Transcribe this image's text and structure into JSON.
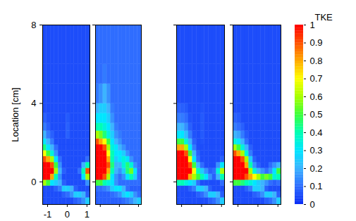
{
  "chart_data": {
    "type": "heatmap",
    "y_label": "Location [cm]",
    "xlim": [
      -1.25,
      1.15
    ],
    "ylim": [
      -1.15,
      8
    ],
    "xticks": [
      -1,
      0,
      1
    ],
    "yticks": [
      0,
      4,
      8
    ],
    "x_bins": [
      -1.25,
      -1.05,
      -0.85,
      -0.65,
      -0.45,
      -0.25,
      -0.05,
      0.15,
      0.35,
      0.55,
      0.75,
      0.95,
      1.15
    ],
    "y_bins": [
      -1.15,
      -0.8,
      -0.5,
      -0.2,
      0.1,
      0.4,
      0.7,
      1.0,
      1.3,
      1.6,
      1.9,
      2.2,
      2.6,
      3.0,
      3.5,
      4.0,
      5.0,
      6.0,
      8.0
    ],
    "colorbar": {
      "title": "TKE",
      "range": [
        0,
        1
      ],
      "ticks": [
        0,
        0.1,
        0.2,
        0.3,
        0.4,
        0.5,
        0.6,
        0.7,
        0.8,
        0.9,
        1
      ]
    },
    "panels": [
      {
        "values": [
          [
            0.05,
            0.05,
            0.05,
            0.05,
            0.05,
            0.05,
            0.05,
            0.05,
            0.08,
            0.1,
            0.15,
            0.25
          ],
          [
            0.05,
            0.05,
            0.05,
            0.05,
            0.05,
            0.08,
            0.1,
            0.15,
            0.25,
            0.25,
            0.2,
            0.08
          ],
          [
            0.05,
            0.05,
            0.05,
            0.08,
            0.12,
            0.25,
            0.25,
            0.2,
            0.08,
            0.05,
            0.05,
            0.05
          ],
          [
            0.6,
            0.5,
            0.3,
            0.25,
            0.2,
            0.08,
            0.05,
            0.05,
            0.05,
            0.05,
            0.05,
            0.15
          ],
          [
            1,
            1,
            0.8,
            0.4,
            0.15,
            0.05,
            0.05,
            0.05,
            0.05,
            0.05,
            0.3,
            0.6
          ],
          [
            1,
            1,
            1,
            0.6,
            0.2,
            0.08,
            0.05,
            0.05,
            0.05,
            0.1,
            0.4,
            0.9
          ],
          [
            1,
            1,
            0.9,
            0.5,
            0.15,
            0.05,
            0.05,
            0.05,
            0.05,
            0.05,
            0.2,
            0.4
          ],
          [
            0.9,
            0.8,
            0.6,
            0.3,
            0.1,
            0.05,
            0.05,
            0.05,
            0.05,
            0.05,
            0.05,
            0.1
          ],
          [
            0.7,
            0.5,
            0.35,
            0.15,
            0.05,
            0.05,
            0.05,
            0.05,
            0.05,
            0.05,
            0.05,
            0.05
          ],
          [
            0.45,
            0.3,
            0.2,
            0.1,
            0.05,
            0.05,
            0.05,
            0.05,
            0.05,
            0.05,
            0.05,
            0.05
          ],
          [
            0.3,
            0.2,
            0.12,
            0.05,
            0.05,
            0.05,
            0.05,
            0.05,
            0.05,
            0.05,
            0.05,
            0.05
          ],
          [
            0.2,
            0.12,
            0.08,
            0.05,
            0.05,
            0.05,
            0.08,
            0.05,
            0.05,
            0.05,
            0.05,
            0.05
          ],
          [
            0.12,
            0.08,
            0.05,
            0.05,
            0.05,
            0.05,
            0.08,
            0.05,
            0.05,
            0.05,
            0.05,
            0.05
          ],
          [
            0.08,
            0.06,
            0.05,
            0.05,
            0.05,
            0.05,
            0.07,
            0.05,
            0.05,
            0.05,
            0.05,
            0.05
          ],
          [
            0.05,
            0.05,
            0.05,
            0.05,
            0.05,
            0.05,
            0.05,
            0.05,
            0.05,
            0.05,
            0.05,
            0.05
          ],
          [
            0.05,
            0.05,
            0.05,
            0.05,
            0.05,
            0.05,
            0.05,
            0.05,
            0.05,
            0.05,
            0.05,
            0.05
          ],
          [
            0.05,
            0.05,
            0.05,
            0.05,
            0.05,
            0.05,
            0.05,
            0.05,
            0.05,
            0.05,
            0.05,
            0.05
          ],
          [
            0.05,
            0.05,
            0.05,
            0.05,
            0.05,
            0.05,
            0.05,
            0.05,
            0.05,
            0.05,
            0.05,
            0.05
          ]
        ]
      },
      {
        "tick_labels": false,
        "values": [
          [
            0.08,
            0.08,
            0.08,
            0.08,
            0.08,
            0.08,
            0.08,
            0.1,
            0.12,
            0.15,
            0.2,
            0.25
          ],
          [
            0.08,
            0.08,
            0.08,
            0.08,
            0.1,
            0.12,
            0.15,
            0.25,
            0.3,
            0.25,
            0.15,
            0.1
          ],
          [
            0.1,
            0.1,
            0.12,
            0.15,
            0.25,
            0.3,
            0.3,
            0.2,
            0.1,
            0.08,
            0.08,
            0.08
          ],
          [
            0.5,
            0.5,
            0.4,
            0.35,
            0.3,
            0.15,
            0.1,
            0.1,
            0.1,
            0.1,
            0.1,
            0.1
          ],
          [
            1,
            1,
            0.9,
            0.6,
            0.3,
            0.15,
            0.1,
            0.15,
            0.3,
            0.4,
            0.25,
            0.1
          ],
          [
            1,
            1,
            1,
            0.8,
            0.4,
            0.2,
            0.15,
            0.25,
            0.45,
            0.55,
            0.3,
            0.1
          ],
          [
            1,
            1,
            1,
            0.9,
            0.45,
            0.2,
            0.2,
            0.35,
            0.45,
            0.35,
            0.15,
            0.1
          ],
          [
            1,
            1,
            1,
            0.8,
            0.4,
            0.25,
            0.3,
            0.35,
            0.3,
            0.15,
            0.1,
            0.1
          ],
          [
            1,
            1,
            1,
            0.7,
            0.4,
            0.3,
            0.3,
            0.25,
            0.15,
            0.1,
            0.1,
            0.1
          ],
          [
            1,
            1,
            0.9,
            0.6,
            0.35,
            0.3,
            0.2,
            0.15,
            0.1,
            0.1,
            0.1,
            0.1
          ],
          [
            0.9,
            0.8,
            0.7,
            0.5,
            0.3,
            0.2,
            0.15,
            0.1,
            0.1,
            0.1,
            0.1,
            0.1
          ],
          [
            0.6,
            0.55,
            0.45,
            0.35,
            0.25,
            0.15,
            0.12,
            0.1,
            0.1,
            0.1,
            0.1,
            0.1
          ],
          [
            0.4,
            0.4,
            0.35,
            0.3,
            0.2,
            0.12,
            0.1,
            0.1,
            0.1,
            0.1,
            0.1,
            0.1
          ],
          [
            0.3,
            0.3,
            0.3,
            0.25,
            0.15,
            0.1,
            0.1,
            0.1,
            0.1,
            0.1,
            0.1,
            0.1
          ],
          [
            0.2,
            0.25,
            0.25,
            0.2,
            0.12,
            0.1,
            0.1,
            0.1,
            0.1,
            0.1,
            0.1,
            0.1
          ],
          [
            0.12,
            0.15,
            0.2,
            0.15,
            0.1,
            0.1,
            0.1,
            0.1,
            0.1,
            0.1,
            0.1,
            0.1
          ],
          [
            0.1,
            0.1,
            0.12,
            0.1,
            0.1,
            0.1,
            0.1,
            0.1,
            0.1,
            0.1,
            0.1,
            0.1
          ],
          [
            0.1,
            0.1,
            0.1,
            0.1,
            0.1,
            0.1,
            0.1,
            0.1,
            0.1,
            0.1,
            0.1,
            0.1
          ]
        ]
      },
      {
        "tick_labels": false,
        "values": [
          [
            0.05,
            0.05,
            0.05,
            0.05,
            0.05,
            0.05,
            0.05,
            0.05,
            0.08,
            0.1,
            0.15,
            0.25
          ],
          [
            0.05,
            0.05,
            0.05,
            0.05,
            0.05,
            0.08,
            0.1,
            0.15,
            0.25,
            0.25,
            0.2,
            0.08
          ],
          [
            0.05,
            0.05,
            0.05,
            0.08,
            0.12,
            0.25,
            0.25,
            0.2,
            0.08,
            0.05,
            0.05,
            0.05
          ],
          [
            0.4,
            0.4,
            0.35,
            0.3,
            0.25,
            0.1,
            0.05,
            0.05,
            0.05,
            0.05,
            0.05,
            0.1
          ],
          [
            1,
            1,
            1,
            0.8,
            0.6,
            0.5,
            0.4,
            0.3,
            0.15,
            0.08,
            0.2,
            0.4
          ],
          [
            1,
            1,
            1,
            1,
            0.7,
            0.4,
            0.25,
            0.15,
            0.08,
            0.1,
            0.35,
            0.6
          ],
          [
            1,
            1,
            1,
            0.9,
            0.5,
            0.2,
            0.1,
            0.05,
            0.05,
            0.05,
            0.15,
            0.3
          ],
          [
            1,
            1,
            1,
            0.7,
            0.3,
            0.1,
            0.05,
            0.05,
            0.05,
            0.05,
            0.05,
            0.08
          ],
          [
            1,
            1,
            0.9,
            0.5,
            0.2,
            0.08,
            0.05,
            0.05,
            0.05,
            0.05,
            0.05,
            0.05
          ],
          [
            0.8,
            0.8,
            0.6,
            0.3,
            0.12,
            0.05,
            0.05,
            0.05,
            0.05,
            0.05,
            0.05,
            0.05
          ],
          [
            0.5,
            0.5,
            0.35,
            0.2,
            0.08,
            0.05,
            0.06,
            0.05,
            0.05,
            0.05,
            0.05,
            0.05
          ],
          [
            0.3,
            0.3,
            0.22,
            0.12,
            0.06,
            0.05,
            0.07,
            0.05,
            0.05,
            0.05,
            0.05,
            0.05
          ],
          [
            0.2,
            0.2,
            0.15,
            0.08,
            0.05,
            0.05,
            0.07,
            0.05,
            0.05,
            0.05,
            0.05,
            0.05
          ],
          [
            0.12,
            0.12,
            0.1,
            0.06,
            0.05,
            0.05,
            0.07,
            0.05,
            0.05,
            0.05,
            0.05,
            0.05
          ],
          [
            0.08,
            0.08,
            0.07,
            0.05,
            0.05,
            0.05,
            0.06,
            0.05,
            0.05,
            0.05,
            0.05,
            0.05
          ],
          [
            0.05,
            0.05,
            0.05,
            0.05,
            0.05,
            0.05,
            0.05,
            0.05,
            0.05,
            0.05,
            0.05,
            0.05
          ],
          [
            0.05,
            0.05,
            0.05,
            0.05,
            0.05,
            0.05,
            0.05,
            0.05,
            0.05,
            0.05,
            0.05,
            0.05
          ],
          [
            0.05,
            0.05,
            0.05,
            0.05,
            0.05,
            0.05,
            0.05,
            0.05,
            0.05,
            0.05,
            0.05,
            0.05
          ]
        ]
      },
      {
        "tick_labels": false,
        "values": [
          [
            0.05,
            0.05,
            0.05,
            0.05,
            0.05,
            0.05,
            0.05,
            0.05,
            0.08,
            0.1,
            0.15,
            0.25
          ],
          [
            0.05,
            0.05,
            0.05,
            0.05,
            0.05,
            0.08,
            0.1,
            0.15,
            0.25,
            0.25,
            0.2,
            0.08
          ],
          [
            0.05,
            0.05,
            0.05,
            0.08,
            0.12,
            0.25,
            0.25,
            0.2,
            0.08,
            0.05,
            0.05,
            0.05
          ],
          [
            0.5,
            0.5,
            0.45,
            0.4,
            0.35,
            0.3,
            0.25,
            0.2,
            0.15,
            0.1,
            0.08,
            0.1
          ],
          [
            1,
            1,
            1,
            0.9,
            0.8,
            0.7,
            0.6,
            0.5,
            0.55,
            0.5,
            0.35,
            0.4
          ],
          [
            1,
            1,
            1,
            1,
            0.6,
            0.35,
            0.2,
            0.15,
            0.1,
            0.15,
            0.3,
            0.5
          ],
          [
            1,
            1,
            1,
            0.8,
            0.4,
            0.15,
            0.08,
            0.05,
            0.05,
            0.1,
            0.15,
            0.2
          ],
          [
            1,
            1,
            0.9,
            0.6,
            0.25,
            0.08,
            0.05,
            0.05,
            0.05,
            0.05,
            0.05,
            0.05
          ],
          [
            0.9,
            0.8,
            0.6,
            0.35,
            0.12,
            0.05,
            0.05,
            0.05,
            0.05,
            0.05,
            0.05,
            0.05
          ],
          [
            0.6,
            0.5,
            0.35,
            0.2,
            0.08,
            0.05,
            0.05,
            0.05,
            0.05,
            0.05,
            0.05,
            0.05
          ],
          [
            0.35,
            0.3,
            0.2,
            0.1,
            0.05,
            0.05,
            0.05,
            0.05,
            0.05,
            0.05,
            0.05,
            0.05
          ],
          [
            0.2,
            0.18,
            0.12,
            0.07,
            0.05,
            0.05,
            0.05,
            0.05,
            0.05,
            0.05,
            0.05,
            0.05
          ],
          [
            0.12,
            0.1,
            0.08,
            0.05,
            0.05,
            0.05,
            0.05,
            0.05,
            0.05,
            0.05,
            0.05,
            0.05
          ],
          [
            0.08,
            0.07,
            0.05,
            0.05,
            0.05,
            0.05,
            0.05,
            0.05,
            0.05,
            0.05,
            0.05,
            0.05
          ],
          [
            0.05,
            0.05,
            0.05,
            0.05,
            0.05,
            0.05,
            0.05,
            0.05,
            0.05,
            0.05,
            0.05,
            0.05
          ],
          [
            0.05,
            0.05,
            0.05,
            0.05,
            0.05,
            0.05,
            0.05,
            0.05,
            0.05,
            0.05,
            0.05,
            0.05
          ],
          [
            0.05,
            0.05,
            0.05,
            0.05,
            0.05,
            0.05,
            0.05,
            0.05,
            0.05,
            0.05,
            0.05,
            0.05
          ],
          [
            0.05,
            0.05,
            0.05,
            0.05,
            0.05,
            0.05,
            0.05,
            0.05,
            0.05,
            0.05,
            0.05,
            0.05
          ]
        ]
      }
    ]
  }
}
